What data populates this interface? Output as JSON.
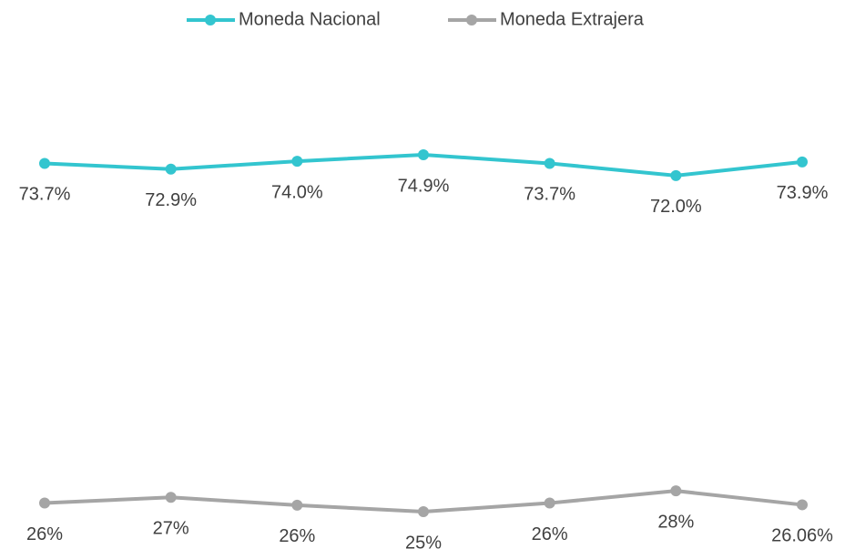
{
  "chart_data": {
    "type": "line",
    "categories": [
      null,
      null,
      null,
      null,
      null,
      null,
      null
    ],
    "series": [
      {
        "name": "Moneda Nacional",
        "color": "#33c5cf",
        "values": [
          73.7,
          72.9,
          74.0,
          74.9,
          73.7,
          72.0,
          73.9
        ],
        "value_labels": [
          "73.7%",
          "72.9%",
          "74.0%",
          "74.9%",
          "73.7%",
          "72.0%",
          "73.9%"
        ]
      },
      {
        "name": "Moneda Extrajera",
        "color": "#a5a5a5",
        "values": [
          26.3,
          27.1,
          26.0,
          25.1,
          26.3,
          28.0,
          26.06
        ],
        "value_labels": [
          "26%",
          "27%",
          "26%",
          "25%",
          "26%",
          "28%",
          "26.06%"
        ]
      }
    ],
    "legend": "top"
  }
}
